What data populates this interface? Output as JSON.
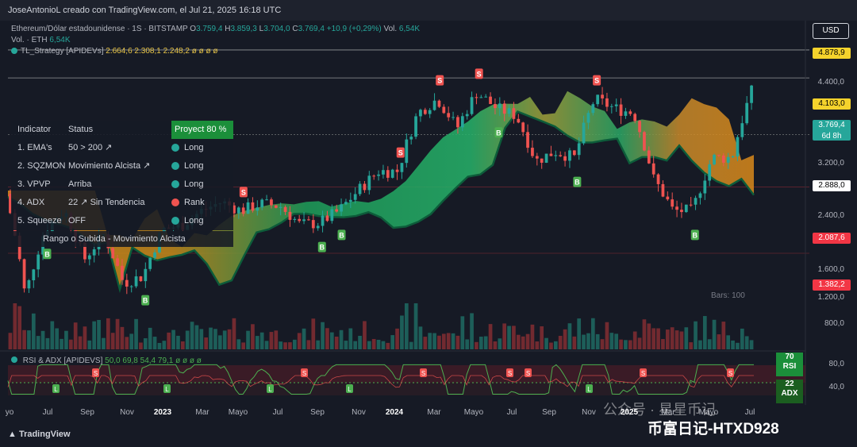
{
  "header": {
    "author_line": "JoseAntonioL creado con TradingView.com, el Jul 21, 2025 16:18 UTC"
  },
  "legend": {
    "symbol": "Ethereum/Dólar estadounidense · 1S · BITSTAMP",
    "o_label": "O",
    "o": "3.759,4",
    "h_label": "H",
    "h": "3.859,3",
    "l_label": "L",
    "l": "3.704,0",
    "c_label": "C",
    "c": "3.769,4",
    "change": "+10,9 (+0,29%)",
    "vol_label": "Vol.",
    "vol": "6,54K",
    "vol_line_label": "Vol. · ETH",
    "vol_line_value": "6,54K",
    "strategy": "TL_Strategy [APIDEVs]",
    "strategy_values": "2.664,6  2.308,1  2.248,2  ø  ø  ø  ø"
  },
  "currency_button": "USD",
  "price_axis": {
    "ticks": [
      "4.400,0",
      "3.200,0",
      "2.400,0",
      "1.600,0",
      "1.200,0",
      "800,0"
    ],
    "labels": [
      {
        "text": "4.878,9",
        "bg": "#f5d32c",
        "fg": "#000000"
      },
      {
        "text": "4.103,0",
        "bg": "#f5d32c",
        "fg": "#000000"
      },
      {
        "text": "3.769,4",
        "sub": "6d 8h",
        "bg": "#26a69a",
        "fg": "#ffffff"
      },
      {
        "text": "2.888,0",
        "bg": "#ffffff",
        "fg": "#000000"
      },
      {
        "text": "2.087,6",
        "bg": "#f23645",
        "fg": "#ffffff"
      },
      {
        "text": "1.382,2",
        "bg": "#f23645",
        "fg": "#ffffff"
      }
    ]
  },
  "indicator_table": {
    "header": {
      "indicator": "Indicator",
      "status": "Status",
      "projection": "Proyect 80 %"
    },
    "rows": [
      {
        "name": "1. EMA's",
        "status": "50 > 200 ↗",
        "signal": "Long",
        "color": "#26a69a"
      },
      {
        "name": "2. SQZMON",
        "status": "Movimiento Alcista ↗",
        "signal": "Long",
        "color": "#26a69a"
      },
      {
        "name": "3. VPVP",
        "status": "Arriba",
        "signal": "Long",
        "color": "#26a69a"
      },
      {
        "name": "4. ADX",
        "status": "22 ↗ Sin Tendencia",
        "signal": "Rank",
        "color": "#ef5350"
      },
      {
        "name": "5. Squeeze",
        "status": "OFF",
        "signal": "Long",
        "color": "#26a69a"
      }
    ],
    "footer": "Rango o Subida - Movimiento Alcista"
  },
  "bars_label": "Bars: 100",
  "rsi": {
    "legend": "RSI & ADX [APIDEVS]",
    "values": "50,0  69,8  54,4  79,1  ø  ø  ø  ø",
    "ticks": [
      "80,0",
      "40,0"
    ],
    "rsi_value": "70",
    "rsi_label": "RSI",
    "adx_value": "22",
    "adx_label": "ADX"
  },
  "time_axis": [
    {
      "t": "yo",
      "b": false
    },
    {
      "t": "Jul",
      "b": false
    },
    {
      "t": "Sep",
      "b": false
    },
    {
      "t": "Nov",
      "b": false
    },
    {
      "t": "2023",
      "b": true
    },
    {
      "t": "Mar",
      "b": false
    },
    {
      "t": "Mayo",
      "b": false
    },
    {
      "t": "Jul",
      "b": false
    },
    {
      "t": "Sep",
      "b": false
    },
    {
      "t": "Nov",
      "b": false
    },
    {
      "t": "2024",
      "b": true
    },
    {
      "t": "Mar",
      "b": false
    },
    {
      "t": "Mayo",
      "b": false
    },
    {
      "t": "Jul",
      "b": false
    },
    {
      "t": "Sep",
      "b": false
    },
    {
      "t": "Nov",
      "b": false
    },
    {
      "t": "2025",
      "b": true
    },
    {
      "t": "Mar",
      "b": false
    },
    {
      "t": "Mayo",
      "b": false
    },
    {
      "t": "Jul",
      "b": false
    }
  ],
  "footer_brand": "TradingView",
  "watermark_1": "公众号 · 星星币记",
  "watermark_2": "币富日记-HTXD928",
  "colors": {
    "up": "#26a69a",
    "down": "#ef5350",
    "band_green": "#1e9e5a",
    "band_orange": "#d9891a"
  },
  "chart_data": {
    "type": "candlestick",
    "interval": "1S",
    "exchange": "BITSTAMP",
    "x_range": [
      "2022-05",
      "2025-07"
    ],
    "y_scale": "log",
    "weekly_close_path": [
      [
        "2022-05",
        2000
      ],
      [
        "2022-06",
        1050
      ],
      [
        "2022-07",
        1600
      ],
      [
        "2022-08",
        1800
      ],
      [
        "2022-09",
        1330
      ],
      [
        "2022-10",
        1550
      ],
      [
        "2022-11",
        1150
      ],
      [
        "2022-12",
        1200
      ],
      [
        "2023-01",
        1600
      ],
      [
        "2023-02",
        1650
      ],
      [
        "2023-03",
        1800
      ],
      [
        "2023-04",
        1900
      ],
      [
        "2023-05",
        1800
      ],
      [
        "2023-06",
        1880
      ],
      [
        "2023-07",
        1850
      ],
      [
        "2023-08",
        1650
      ],
      [
        "2023-09",
        1670
      ],
      [
        "2023-10",
        1800
      ],
      [
        "2023-11",
        2050
      ],
      [
        "2023-12",
        2300
      ],
      [
        "2024-01",
        2300
      ],
      [
        "2024-02",
        3300
      ],
      [
        "2024-03",
        3600
      ],
      [
        "2024-04",
        3000
      ],
      [
        "2024-05",
        3750
      ],
      [
        "2024-06",
        3400
      ],
      [
        "2024-07",
        3250
      ],
      [
        "2024-08",
        2450
      ],
      [
        "2024-09",
        2600
      ],
      [
        "2024-10",
        2500
      ],
      [
        "2024-11",
        3600
      ],
      [
        "2024-12",
        3400
      ],
      [
        "2025-01",
        3300
      ],
      [
        "2025-02",
        2200
      ],
      [
        "2025-03",
        1800
      ],
      [
        "2025-04",
        1800
      ],
      [
        "2025-05",
        2500
      ],
      [
        "2025-06",
        2500
      ],
      [
        "2025-07",
        3769.4
      ]
    ],
    "markers": [
      {
        "date": "2022-07",
        "label": "B"
      },
      {
        "date": "2022-12",
        "label": "B"
      },
      {
        "date": "2023-05",
        "label": "S"
      },
      {
        "date": "2023-09",
        "label": "B"
      },
      {
        "date": "2023-10",
        "label": "B"
      },
      {
        "date": "2024-01",
        "label": "S"
      },
      {
        "date": "2024-03",
        "label": "S"
      },
      {
        "date": "2024-05",
        "label": "S"
      },
      {
        "date": "2024-06",
        "label": "B"
      },
      {
        "date": "2024-10",
        "label": "B"
      },
      {
        "date": "2024-11",
        "label": "S"
      },
      {
        "date": "2025-04",
        "label": "B"
      }
    ],
    "rsi_adx": {
      "rsi": 70,
      "adx": 22
    }
  }
}
